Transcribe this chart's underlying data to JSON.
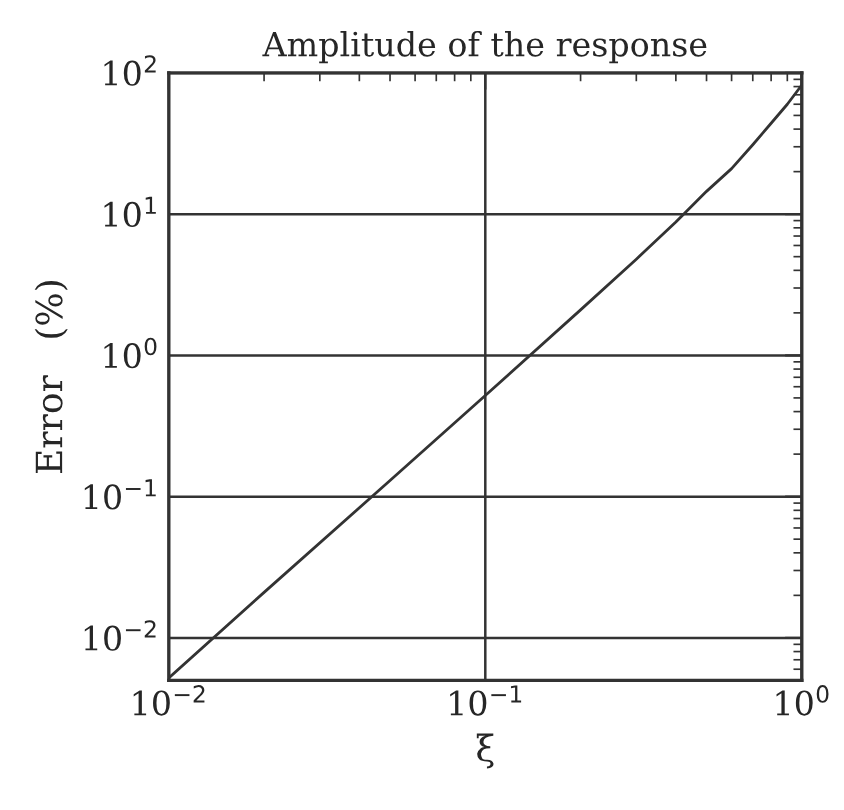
{
  "chart_data": {
    "type": "line",
    "title": "Amplitude of the response",
    "xlabel": "ξ",
    "ylabel": "Error   (%)",
    "log": "xy",
    "grid": true,
    "marker": "none",
    "line_style": "solid",
    "x": [
      0.01,
      0.02,
      0.05,
      0.1,
      0.2,
      0.3,
      0.4,
      0.5,
      0.6,
      0.7,
      0.8,
      0.9,
      1.0
    ],
    "series": [
      {
        "color": "#333333",
        "values": [
          0.0052,
          0.021,
          0.13,
          0.52,
          2.1,
          4.8,
          8.8,
          14.5,
          21,
          31,
          44,
          60,
          82
        ]
      }
    ],
    "xlim": [
      0.01,
      1
    ],
    "ylim": [
      0.005,
      100
    ],
    "xticks": [
      {
        "value": 0.01,
        "label": "10$^{−2}$"
      },
      {
        "value": 0.1,
        "label": "10$^{−1}$"
      },
      {
        "value": 1,
        "label": "10$^{0}$"
      }
    ],
    "yticks": [
      {
        "value": 0.01,
        "label": "10$^{−2}$"
      },
      {
        "value": 0.1,
        "label": "10$^{−1}$"
      },
      {
        "value": 1,
        "label": "10$^{0}$"
      },
      {
        "value": 10,
        "label": "10$^{1}$"
      },
      {
        "value": 100,
        "label": "10$^{2}$"
      }
    ]
  }
}
